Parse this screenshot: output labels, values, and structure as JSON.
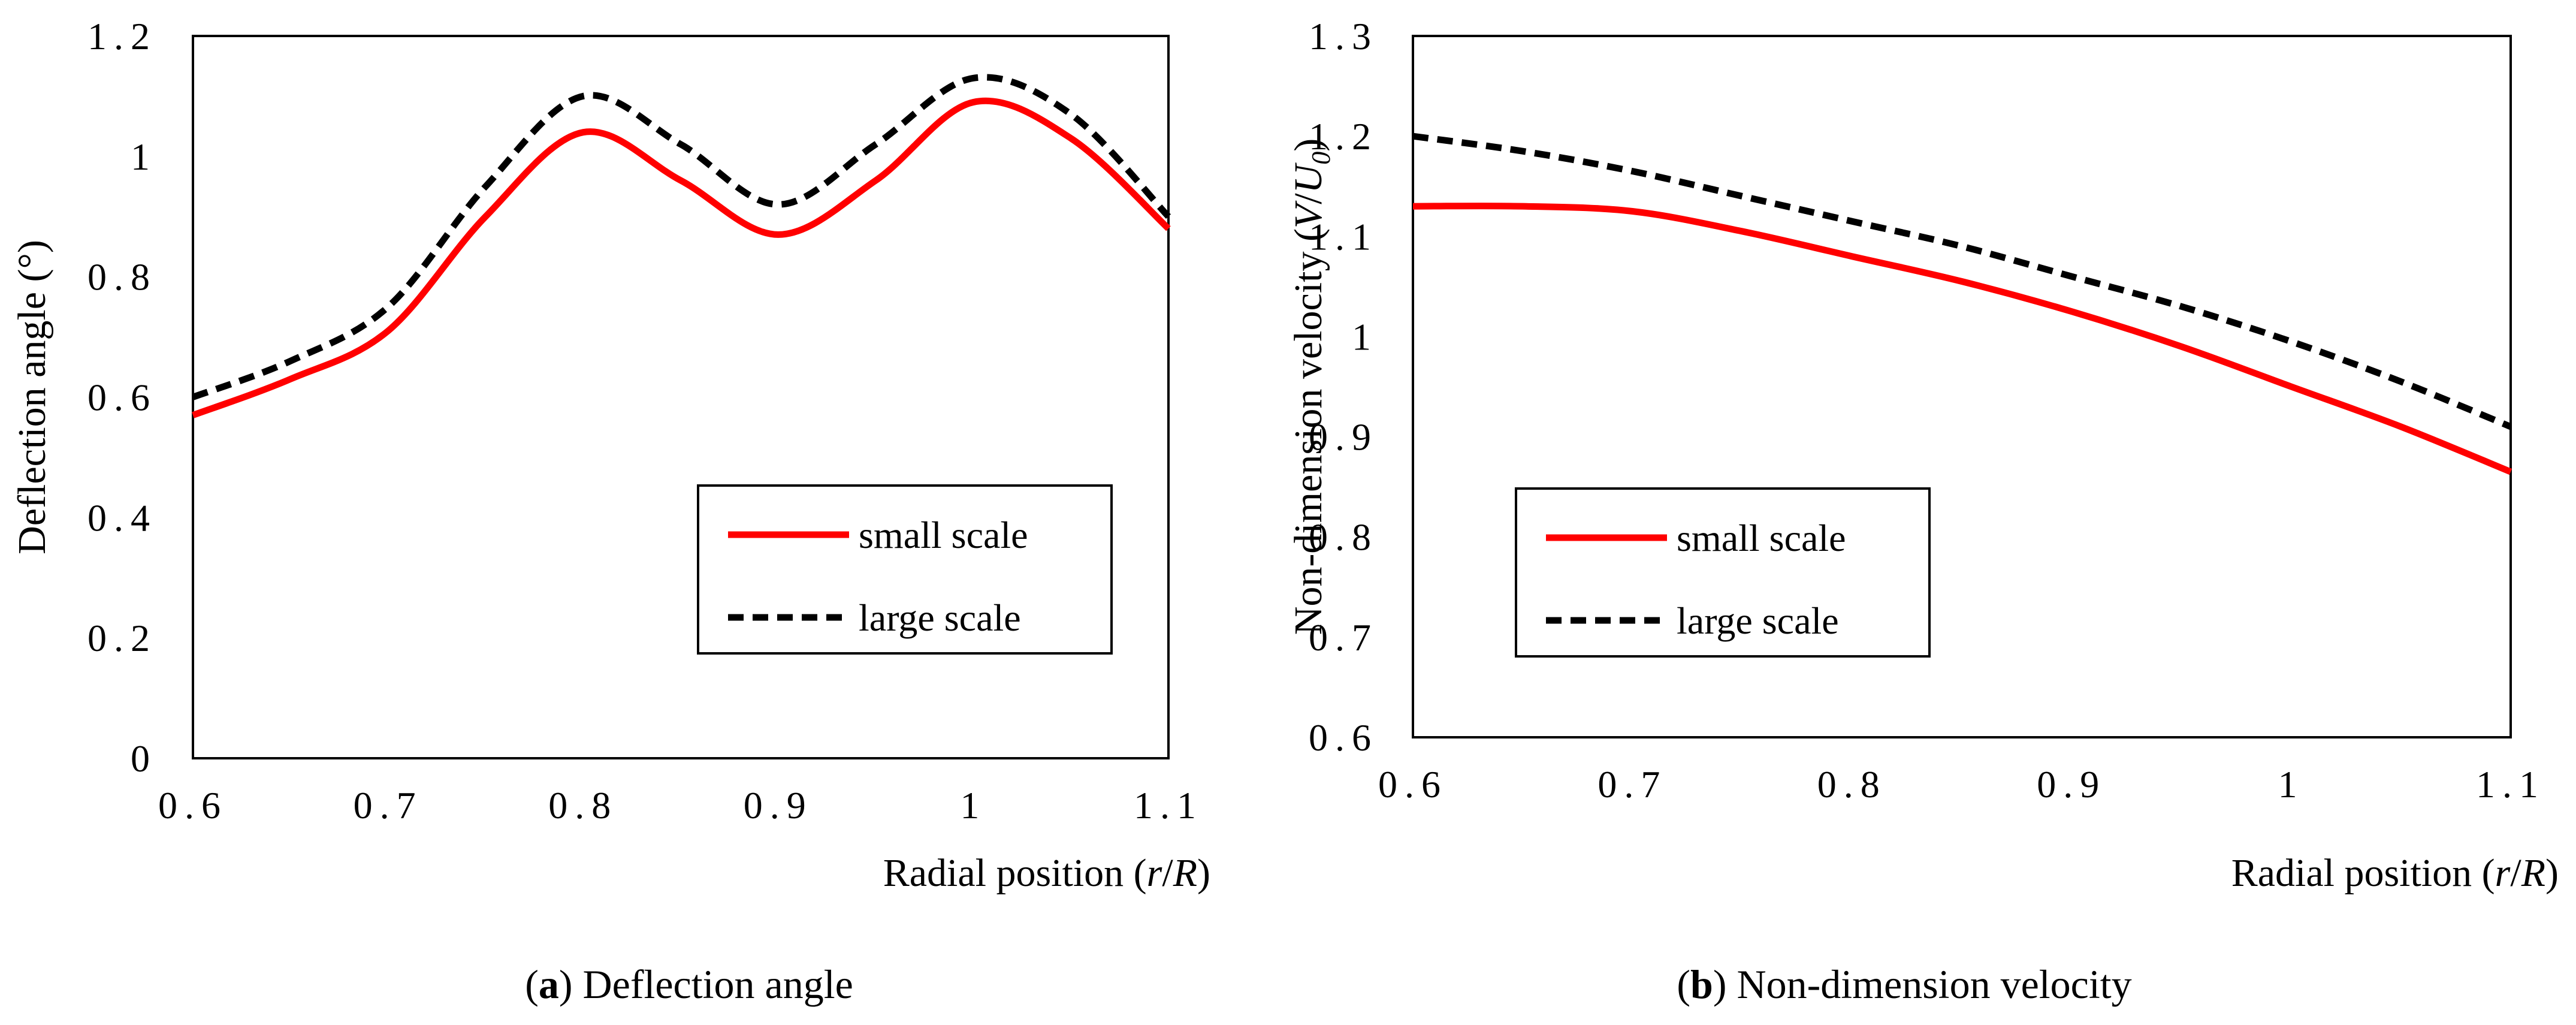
{
  "chart_data": [
    {
      "type": "line",
      "caption": {
        "letter": "a",
        "text": "Deflection angle"
      },
      "xlabel": {
        "prefix": "Radial position (",
        "var1": "r",
        "sep": "/",
        "var2": "R",
        "suffix": ")"
      },
      "ylabel": {
        "text": "Deflection angle (°)"
      },
      "xlim": [
        0.6,
        1.1
      ],
      "ylim": [
        0,
        1.2
      ],
      "xticks": [
        0.6,
        0.7,
        0.8,
        0.9,
        1,
        1.1
      ],
      "xtick_labels": [
        "0.6",
        "0.7",
        "0.8",
        "0.9",
        "1",
        "1.1"
      ],
      "yticks": [
        0,
        0.2,
        0.4,
        0.6,
        0.8,
        1,
        1.2
      ],
      "ytick_labels": [
        "0",
        "0.2",
        "0.4",
        "0.6",
        "0.8",
        "1",
        "1.2"
      ],
      "grid": false,
      "legend_position": "lower-right",
      "series": [
        {
          "name": "small scale",
          "color": "#ff0000",
          "dash": "solid",
          "x": [
            0.6,
            0.65,
            0.7,
            0.75,
            0.8,
            0.85,
            0.9,
            0.95,
            1.0,
            1.05,
            1.1
          ],
          "y": [
            0.57,
            0.63,
            0.71,
            0.9,
            1.04,
            0.96,
            0.87,
            0.96,
            1.09,
            1.03,
            0.88
          ]
        },
        {
          "name": "large scale",
          "color": "#000000",
          "dash": "dashed",
          "x": [
            0.6,
            0.65,
            0.7,
            0.75,
            0.8,
            0.85,
            0.9,
            0.95,
            1.0,
            1.05,
            1.1
          ],
          "y": [
            0.6,
            0.66,
            0.75,
            0.95,
            1.1,
            1.02,
            0.92,
            1.02,
            1.13,
            1.07,
            0.9
          ]
        }
      ]
    },
    {
      "type": "line",
      "caption": {
        "letter": "b",
        "text": "Non-dimension velocity"
      },
      "xlabel": {
        "prefix": "Radial position (",
        "var1": "r",
        "sep": "/",
        "var2": "R",
        "suffix": ")"
      },
      "ylabel": {
        "text": "Non-dimension velocity (",
        "var1": "V",
        "sep": "/",
        "var2": "U",
        "sub": "0",
        "suffix": ")"
      },
      "xlim": [
        0.6,
        1.1
      ],
      "ylim": [
        0.6,
        1.3
      ],
      "xticks": [
        0.6,
        0.7,
        0.8,
        0.9,
        1,
        1.1
      ],
      "xtick_labels": [
        "0.6",
        "0.7",
        "0.8",
        "0.9",
        "1",
        "1.1"
      ],
      "yticks": [
        0.6,
        0.7,
        0.8,
        0.9,
        1,
        1.1,
        1.2,
        1.3
      ],
      "ytick_labels": [
        "0.6",
        "0.7",
        "0.8",
        "0.9",
        "1",
        "1.1",
        "1.2",
        "1.3"
      ],
      "grid": false,
      "legend_position": "lower-left",
      "series": [
        {
          "name": "small scale",
          "color": "#ff0000",
          "dash": "solid",
          "x": [
            0.6,
            0.65,
            0.7,
            0.75,
            0.8,
            0.85,
            0.9,
            0.95,
            1.0,
            1.05,
            1.1
          ],
          "y": [
            1.13,
            1.13,
            1.125,
            1.105,
            1.08,
            1.055,
            1.025,
            0.99,
            0.95,
            0.91,
            0.865
          ]
        },
        {
          "name": "large scale",
          "color": "#000000",
          "dash": "dashed",
          "x": [
            0.6,
            0.65,
            0.7,
            0.75,
            0.8,
            0.85,
            0.9,
            0.95,
            1.0,
            1.05,
            1.1
          ],
          "y": [
            1.2,
            1.185,
            1.165,
            1.14,
            1.115,
            1.09,
            1.06,
            1.03,
            0.995,
            0.955,
            0.91
          ]
        }
      ]
    }
  ]
}
